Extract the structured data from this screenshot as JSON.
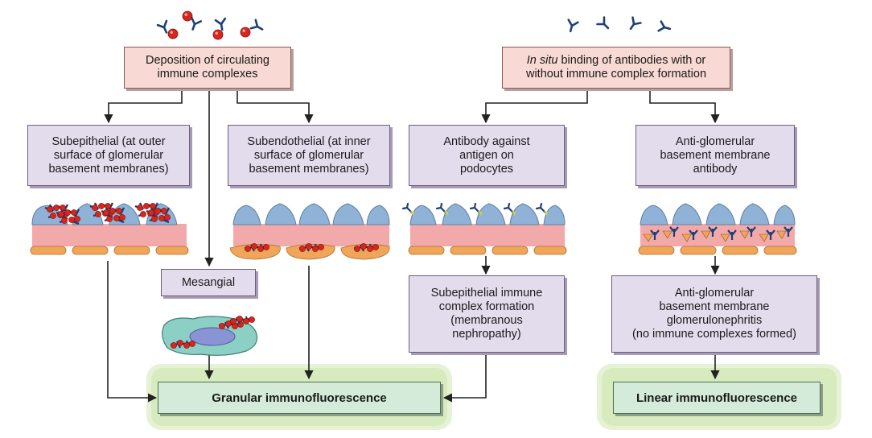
{
  "left_top_box": {
    "lines": [
      "Deposition of circulating",
      "immune complexes"
    ]
  },
  "right_top_box": {
    "line1_italic": "In situ",
    "line1_rest": " binding of antibodies with or",
    "line2": "without immune complex formation"
  },
  "subepithelial_box": {
    "lines": [
      "Subepithelial (at outer",
      "surface of glomerular",
      "basement membranes)"
    ]
  },
  "subendothelial_box": {
    "lines": [
      "Subendothelial (at inner",
      "surface of glomerular",
      "basement membranes)"
    ]
  },
  "mesangial_box": {
    "label": "Mesangial"
  },
  "podocyte_antibody_box": {
    "lines": [
      "Antibody against",
      "antigen on",
      "podocytes"
    ]
  },
  "anti_gbm_box": {
    "lines": [
      "Anti-glomerular",
      "basement membrane",
      "antibody"
    ]
  },
  "membranous_box": {
    "lines": [
      "Subepithelial immune",
      "complex formation",
      "(membranous",
      "nephropathy)"
    ]
  },
  "anti_gbm_gn_box": {
    "lines": [
      "Anti-glomerular",
      "basement membrane",
      "glomerulonephritis",
      "(no immune complexes formed)"
    ]
  },
  "granular_box": {
    "label": "Granular immunofluorescence"
  },
  "linear_box": {
    "label": "Linear immunofluorescence"
  },
  "colors": {
    "arrow": "#222222",
    "antibody": "#1e3f78",
    "antigen": "#d9261c",
    "membrane_pink": "#f2a9aa",
    "podocyte_blue": "#8fb2d6",
    "endothelium_orange": "#f0a65a",
    "pink_box": "#f9d9d4",
    "purple_box": "#e3dced",
    "green_box": "#d3ebd8"
  }
}
